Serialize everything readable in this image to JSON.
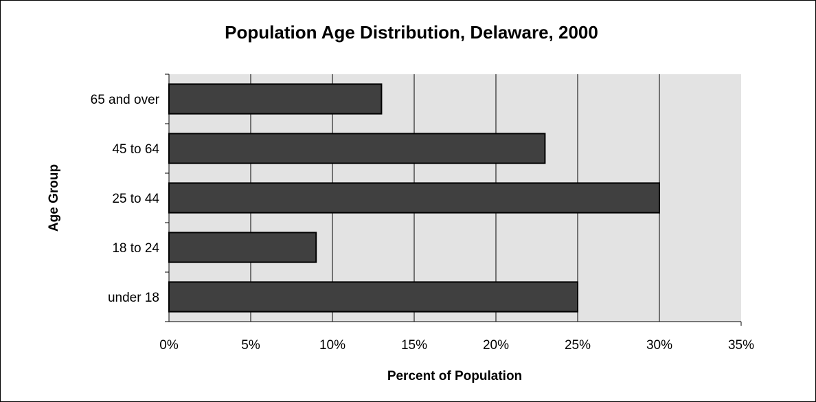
{
  "chart_data": {
    "type": "bar",
    "orientation": "horizontal",
    "title": "Population Age Distribution, Delaware, 2000",
    "xlabel": "Percent of Population",
    "ylabel": "Age Group",
    "categories": [
      "under 18",
      "18 to 24",
      "25 to 44",
      "45 to 64",
      "65 and over"
    ],
    "values": [
      25,
      9,
      30,
      23,
      13
    ],
    "xlim": [
      0,
      35
    ],
    "x_ticks": [
      "0%",
      "5%",
      "10%",
      "15%",
      "20%",
      "25%",
      "30%",
      "35%"
    ],
    "grid": "vertical",
    "legend": "none",
    "colors": {
      "bar": "#404040",
      "plot_background": "#e3e3e3",
      "gridline": "#000000"
    }
  }
}
